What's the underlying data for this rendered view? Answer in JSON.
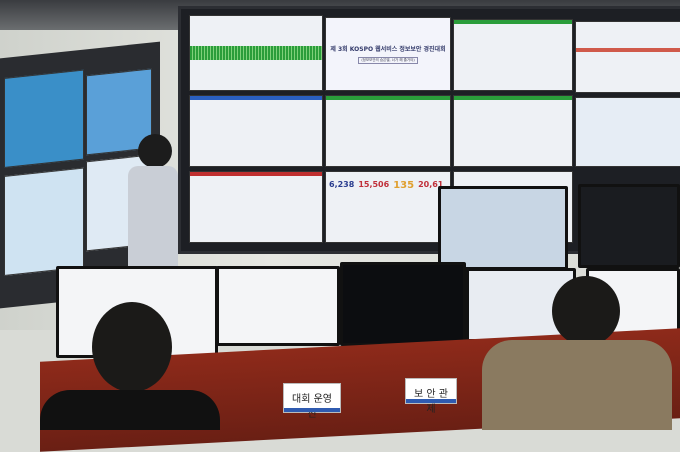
{
  "videowall": {
    "title": "제 3회 KOSPO 웹서비스 정보보안 경진대회",
    "subtitle": "(정보보안의 숨은별, 너가 해 줄거야)",
    "stats": [
      {
        "value": "6,238",
        "color": "#2a3d8f"
      },
      {
        "value": "15,506",
        "color": "#c0303a"
      },
      {
        "value": "135",
        "color": "#e0a030"
      },
      {
        "value": "20,61",
        "color": "#c0303a"
      }
    ]
  },
  "nameplates": [
    {
      "label": "대회 운영진"
    },
    {
      "label": "보 안 관 제"
    }
  ],
  "colors": {
    "desk": "#8e2a1a",
    "accent_green": "#2a9d3a",
    "plate_band": "#2f5bb0"
  }
}
